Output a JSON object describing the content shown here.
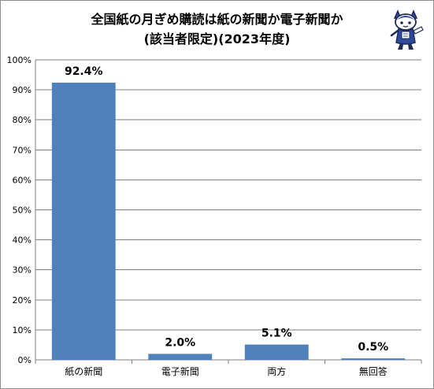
{
  "chart_data": {
    "type": "bar",
    "title_line1": "全国紙の月ぎめ購読は紙の新聞か電子新聞か",
    "title_line2": "(該当者限定)(2023年度)",
    "categories": [
      "紙の新聞",
      "電子新聞",
      "両方",
      "無回答"
    ],
    "values": [
      92.4,
      2.0,
      5.1,
      0.5
    ],
    "data_labels": [
      "92.4%",
      "2.0%",
      "5.1%",
      "0.5%"
    ],
    "ylim": [
      0,
      100
    ],
    "yticks": [
      "0%",
      "10%",
      "20%",
      "30%",
      "40%",
      "50%",
      "60%",
      "70%",
      "80%",
      "90%",
      "100%"
    ],
    "grid": true,
    "bar_color": "#4f81bd",
    "xlabel": "",
    "ylabel": ""
  },
  "logo": {
    "name": "mascot-logo",
    "colors": {
      "outline": "#1f2a5a",
      "fill": "#2e4b9a",
      "face": "#ffffff"
    }
  }
}
